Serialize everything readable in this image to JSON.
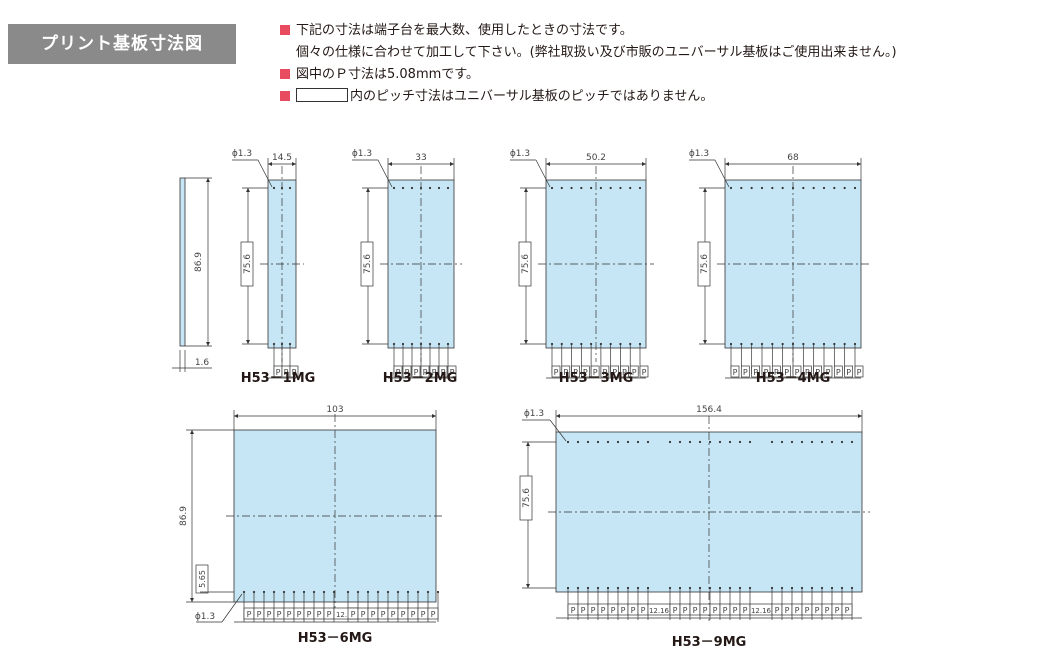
{
  "title": "プリント基板寸法図",
  "notes": {
    "line1": "下記の寸法は端子台を最大数、使用したときの寸法です。",
    "line1b": "個々の仕様に合わせて加工して下さい。(弊社取扱い及び市販のユニバーサル基板はご使用出来ません。)",
    "line2": "図中のＰ寸法は5.08mmです。",
    "line3": "内のピッチ寸法はユニバーサル基板のピッチではありません。"
  },
  "colors": {
    "board": "#c6e6f5",
    "marker": "#e84a5f",
    "badge": "#8a8a8a"
  },
  "dims": {
    "hole": "ϕ1.3",
    "h869": "86.9",
    "h756": "75.6",
    "t16": "1.6",
    "w1": "14.5",
    "w2": "33",
    "w3": "50.2",
    "w4": "68",
    "w6": "103",
    "w9": "156.4",
    "h565": "5.65",
    "gap": "12.16",
    "p": "P"
  },
  "labels": {
    "m1": "H53－1MG",
    "m2": "H53－2MG",
    "m3": "H53－3MG",
    "m4": "H53－4MG",
    "m6": "H53－6MG",
    "m9": "H53－9MG"
  }
}
